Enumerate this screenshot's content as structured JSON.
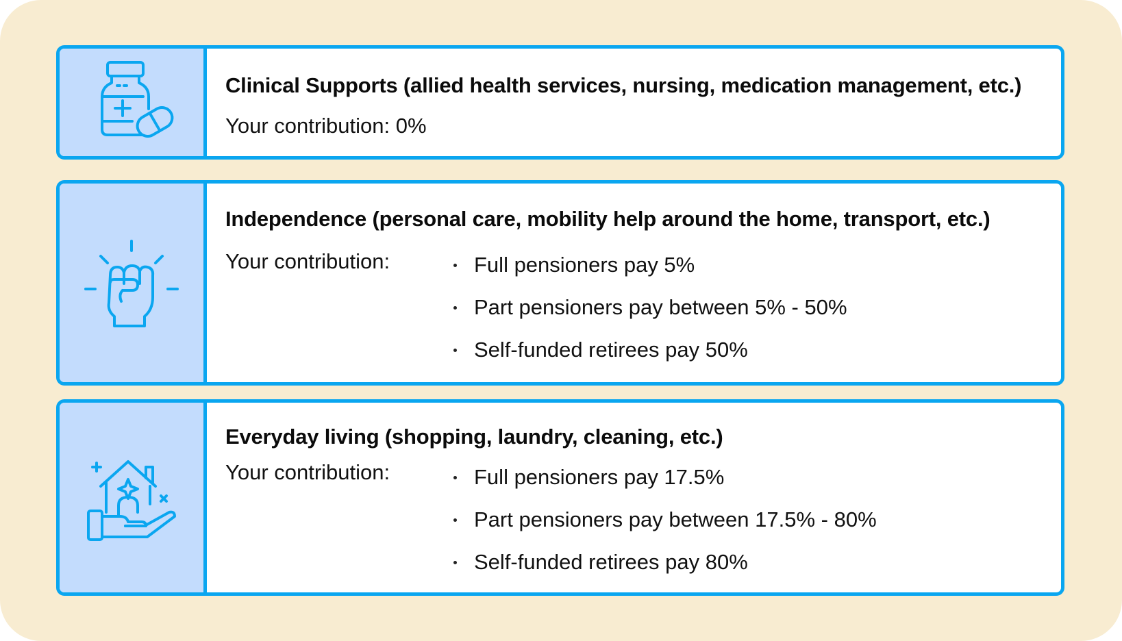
{
  "colors": {
    "background": "#f8ecd1",
    "card_border": "#0aa6f0",
    "icon_panel": "#c3dcfd",
    "icon_stroke": "#0aa6f0"
  },
  "cards": [
    {
      "icon": "medicine-bottle-pill-icon",
      "title": "Clinical Supports (allied health services, nursing, medication management, etc.)",
      "contribution_label": "Your contribution: 0%",
      "items": []
    },
    {
      "icon": "raised-fist-icon",
      "title": "Independence (personal care, mobility help around the home, transport, etc.)",
      "contribution_label": "Your contribution:",
      "items": [
        "Full pensioners pay 5%",
        "Part pensioners pay between 5% - 50%",
        "Self-funded retirees pay 50%"
      ]
    },
    {
      "icon": "hand-holding-house-icon",
      "title": "Everyday living (shopping, laundry, cleaning, etc.)",
      "contribution_label": "Your contribution:",
      "items": [
        "Full pensioners pay 17.5%",
        "Part pensioners pay between 17.5% - 80%",
        "Self-funded retirees pay 80%"
      ]
    }
  ]
}
